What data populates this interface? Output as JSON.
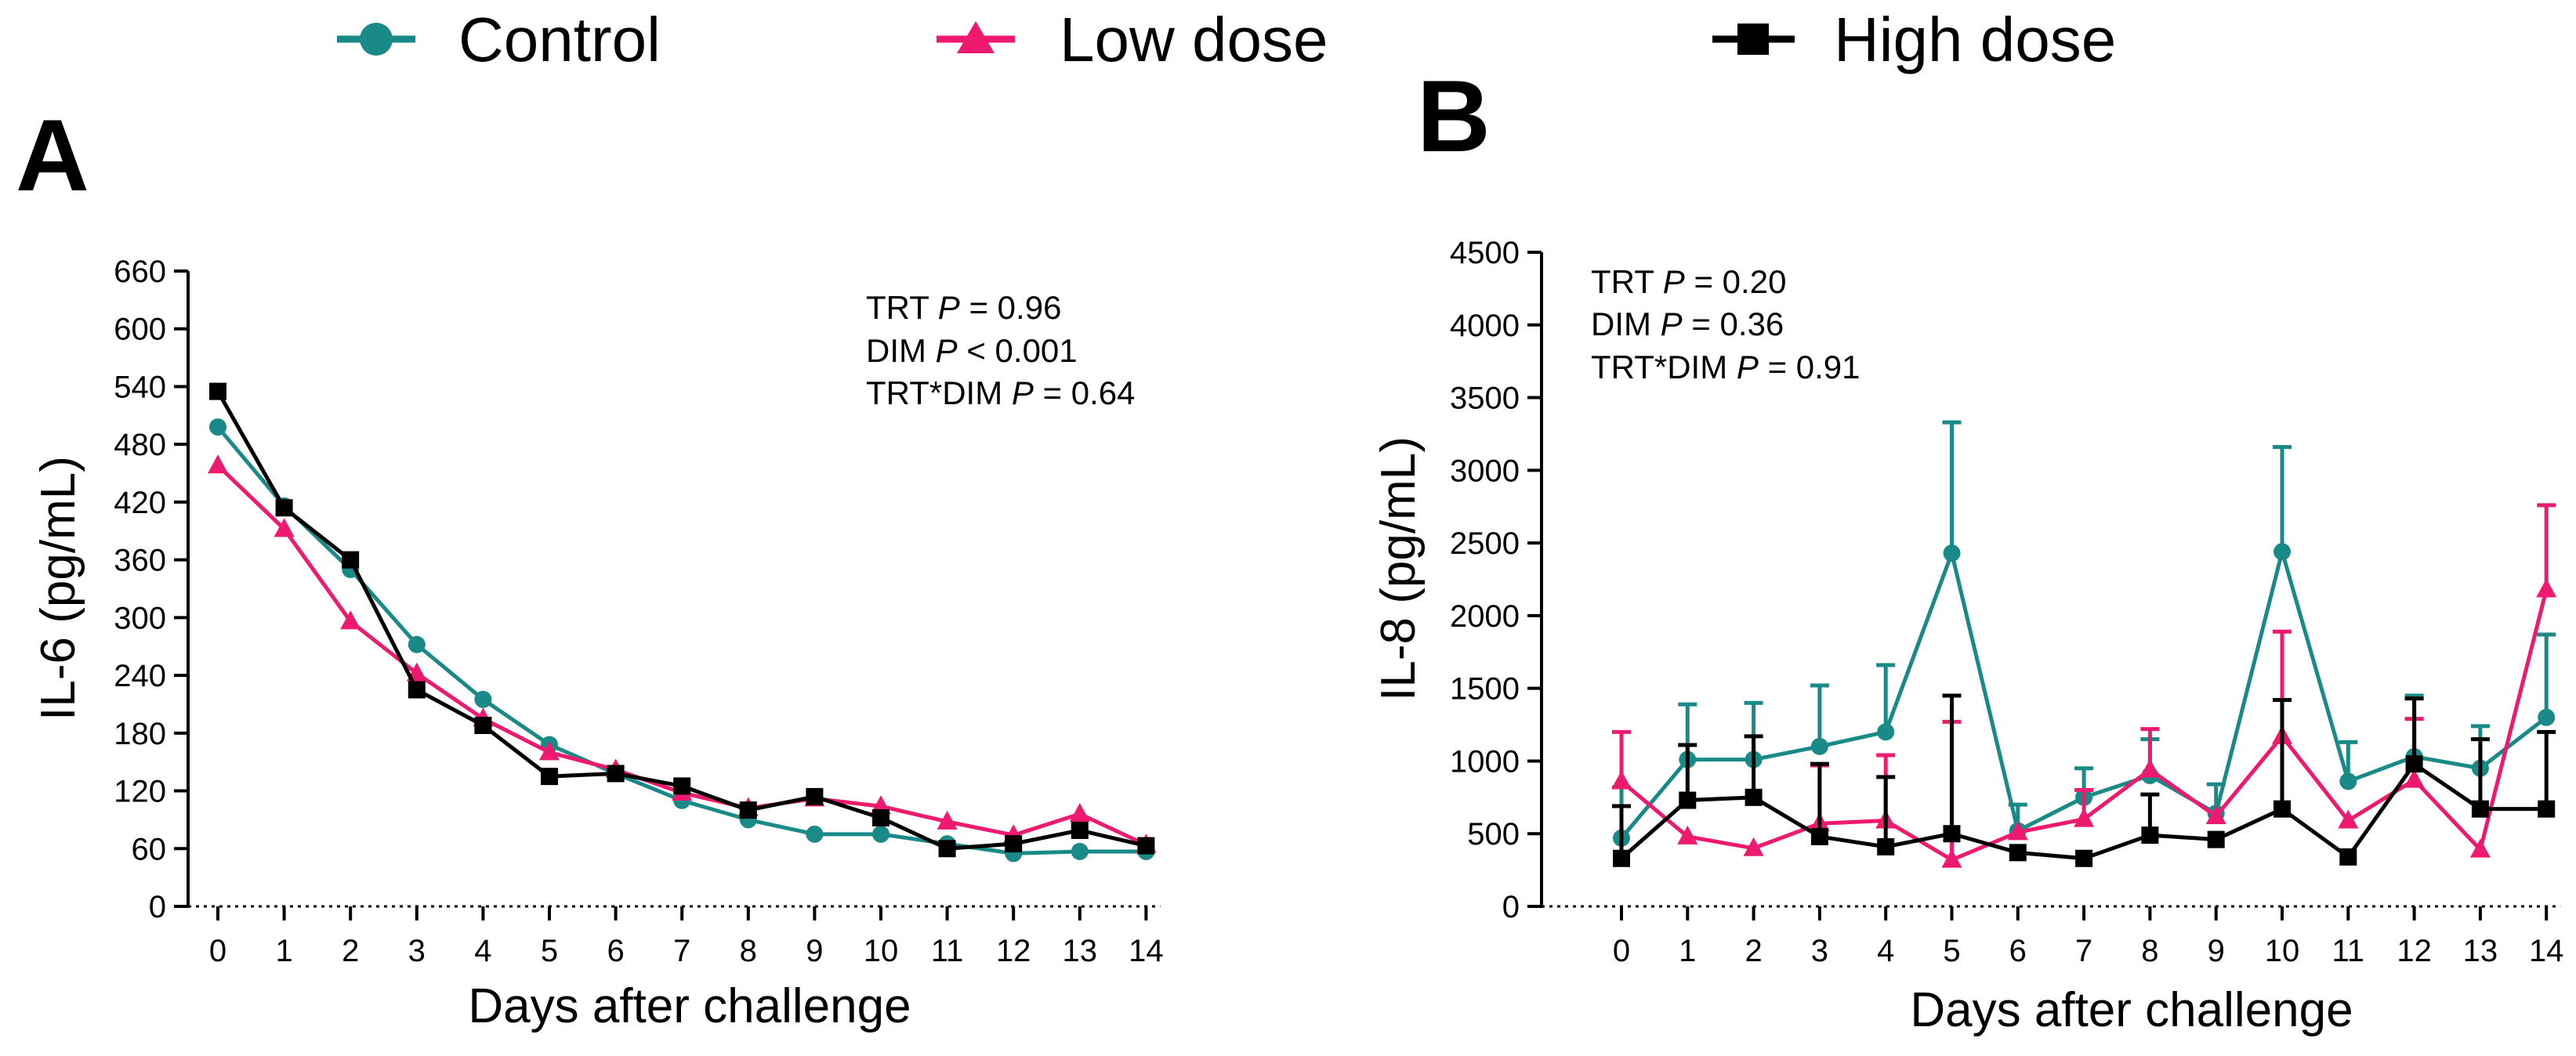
{
  "chart_data": [
    {
      "type": "line",
      "panel": "A",
      "xlabel": "Days after challenge",
      "ylabel": "IL-6 (pg/mL)",
      "ylim": [
        0,
        660
      ],
      "yticks": [
        "0",
        "60",
        "120",
        "180",
        "240",
        "300",
        "360",
        "420",
        "480",
        "540",
        "600",
        "660"
      ],
      "categories": [
        "0",
        "1",
        "2",
        "3",
        "4",
        "5",
        "6",
        "7",
        "8",
        "9",
        "10",
        "11",
        "12",
        "13",
        "14"
      ],
      "stats": [
        {
          "label": "TRT",
          "p_label": "P",
          "op": "=",
          "value": "0.96"
        },
        {
          "label": "DIM",
          "p_label": "P",
          "op": "<",
          "value": "0.001"
        },
        {
          "label": "TRT*DIM",
          "p_label": "P",
          "op": "=",
          "value": "0.64"
        }
      ],
      "series": [
        {
          "name": "Control",
          "marker": "circle",
          "color": "#1a8a88",
          "values": [
            498,
            416,
            350,
            272,
            215,
            168,
            138,
            110,
            90,
            75,
            75,
            65,
            55,
            57,
            57
          ]
        },
        {
          "name": "Low dose",
          "marker": "triangle",
          "color": "#ee1a6f",
          "values": [
            458,
            392,
            296,
            242,
            195,
            160,
            142,
            118,
            102,
            112,
            104,
            88,
            74,
            96,
            64
          ]
        },
        {
          "name": "High dose",
          "marker": "square",
          "color": "#000000",
          "values": [
            535,
            414,
            360,
            225,
            188,
            135,
            138,
            125,
            100,
            114,
            92,
            60,
            65,
            79,
            63
          ]
        }
      ]
    },
    {
      "type": "line",
      "panel": "B",
      "xlabel": "Days after challenge",
      "ylabel": "IL-8 (pg/mL)",
      "ylim": [
        0,
        4500
      ],
      "yticks": [
        "0",
        "500",
        "1000",
        "1500",
        "2000",
        "2500",
        "3000",
        "3500",
        "4000",
        "4500"
      ],
      "categories": [
        "0",
        "1",
        "2",
        "3",
        "4",
        "5",
        "6",
        "7",
        "8",
        "9",
        "10",
        "11",
        "12",
        "13",
        "14"
      ],
      "stats": [
        {
          "label": "TRT",
          "p_label": "P",
          "op": "=",
          "value": "0.20"
        },
        {
          "label": "DIM",
          "p_label": "P",
          "op": "=",
          "value": "0.36"
        },
        {
          "label": "TRT*DIM",
          "p_label": "P",
          "op": "=",
          "value": "0.91"
        }
      ],
      "series": [
        {
          "name": "Control",
          "marker": "circle",
          "color": "#1a8a88",
          "values": [
            470,
            1010,
            1010,
            1100,
            1200,
            2430,
            520,
            750,
            900,
            640,
            2440,
            860,
            1030,
            950,
            1300
          ],
          "errors": [
            350,
            380,
            390,
            420,
            460,
            900,
            180,
            200,
            250,
            200,
            720,
            270,
            420,
            290,
            570
          ]
        },
        {
          "name": "Low dose",
          "marker": "triangle",
          "color": "#ee1a6f",
          "values": [
            860,
            480,
            400,
            570,
            590,
            320,
            510,
            600,
            940,
            620,
            1170,
            590,
            870,
            390,
            2180
          ],
          "errors": [
            340,
            0,
            0,
            400,
            450,
            950,
            0,
            200,
            280,
            0,
            720,
            0,
            420,
            0,
            580
          ]
        },
        {
          "name": "High dose",
          "marker": "square",
          "color": "#000000",
          "values": [
            330,
            730,
            750,
            480,
            410,
            500,
            370,
            330,
            490,
            460,
            670,
            340,
            980,
            670,
            670
          ],
          "errors": [
            360,
            380,
            420,
            500,
            480,
            950,
            0,
            0,
            280,
            0,
            750,
            0,
            450,
            480,
            530
          ]
        }
      ]
    }
  ],
  "legend": {
    "items": [
      {
        "label": "Control",
        "marker": "circle",
        "color": "#1a8a88"
      },
      {
        "label": "Low dose",
        "marker": "triangle",
        "color": "#ee1a6f"
      },
      {
        "label": "High dose",
        "marker": "square",
        "color": "#000000"
      }
    ]
  },
  "panel_labels": {
    "a": "A",
    "b": "B"
  },
  "colors": {
    "control": "#1a8a88",
    "low_dose": "#ee1a6f",
    "high_dose": "#000000"
  }
}
